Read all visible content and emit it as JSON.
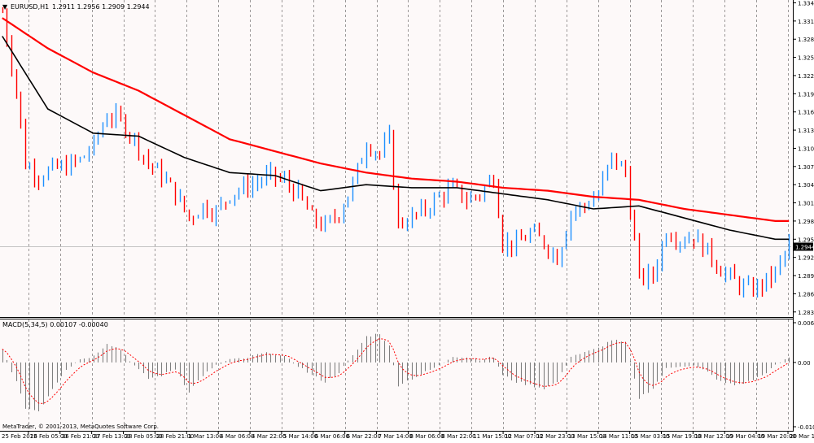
{
  "symbol_header": {
    "symbol": "EURUSD,H1",
    "ohlc": "1.2911 1.2956 1.2909 1.2944"
  },
  "macd_header": "MACD(5,34,5) 0.00107 -0.00040",
  "watermark": "MetaTrader, © 2001-2013, MetaQuotes Software Corp.",
  "price_axis": {
    "ticks": [
      "1.3345",
      "1.3315",
      "1.3285",
      "1.3255",
      "1.3225",
      "1.3195",
      "1.3165",
      "1.3135",
      "1.3105",
      "1.3075",
      "1.3045",
      "1.3015",
      "1.2985",
      "1.2955",
      "1.2925",
      "1.2895",
      "1.2865",
      "1.2835"
    ],
    "current_price": "1.2944"
  },
  "macd_axis": {
    "ticks": [
      "0.00664",
      "0.00",
      "-0.01043"
    ]
  },
  "time_axis": {
    "labels": [
      "25 Feb 2013",
      "26 Feb 05:00",
      "26 Feb 21:00",
      "27 Feb 13:00",
      "28 Feb 05:00",
      "28 Feb 21:00",
      "1 Mar 13:00",
      "4 Mar 06:00",
      "4 Mar 22:00",
      "5 Mar 14:00",
      "6 Mar 06:00",
      "6 Mar 22:00",
      "7 Mar 14:00",
      "8 Mar 06:00",
      "8 Mar 22:00",
      "11 Mar 15:00",
      "12 Mar 07:00",
      "12 Mar 23:00",
      "13 Mar 15:00",
      "14 Mar 11:00",
      "15 Mar 03:00",
      "15 Mar 19:00",
      "18 Mar 12:00",
      "19 Mar 04:00",
      "19 Mar 20:00",
      "20 Mar 12:00"
    ]
  },
  "colors": {
    "background": "#ffffff",
    "plot_bg": "#fdf9f9",
    "bull": "#1e90ff",
    "bear": "#ff0000",
    "ma_slow": "#ff0000",
    "ma_fast": "#000000",
    "macd_hist": "#808080",
    "macd_signal": "#ff0000",
    "grid": "#000000"
  },
  "chart_data": {
    "type": "line",
    "price_ylim": [
      1.2828,
      1.3347
    ],
    "macd_ylim": [
      -0.01043,
      0.00664
    ],
    "price_path": [
      [
        0,
        1.333
      ],
      [
        3,
        1.32
      ],
      [
        5,
        1.308
      ],
      [
        8,
        1.306
      ],
      [
        11,
        1.307
      ],
      [
        14,
        1.3075
      ],
      [
        17,
        1.3085
      ],
      [
        20,
        1.311
      ],
      [
        23,
        1.316
      ],
      [
        26,
        1.315
      ],
      [
        29,
        1.312
      ],
      [
        32,
        1.308
      ],
      [
        35,
        1.306
      ],
      [
        38,
        1.303
      ],
      [
        41,
        1.299
      ],
      [
        44,
        1.301
      ],
      [
        47,
        1.3
      ],
      [
        50,
        1.303
      ],
      [
        53,
        1.304
      ],
      [
        56,
        1.305
      ],
      [
        59,
        1.306
      ],
      [
        62,
        1.305
      ],
      [
        65,
        1.303
      ],
      [
        68,
        1.299
      ],
      [
        71,
        1.2975
      ],
      [
        74,
        1.3
      ],
      [
        77,
        1.3045
      ],
      [
        80,
        1.3115
      ],
      [
        83,
        1.3095
      ],
      [
        85,
        1.312
      ],
      [
        87,
        1.298
      ],
      [
        90,
        1.299
      ],
      [
        93,
        1.3005
      ],
      [
        96,
        1.3025
      ],
      [
        99,
        1.304
      ],
      [
        102,
        1.302
      ],
      [
        105,
        1.303
      ],
      [
        108,
        1.306
      ],
      [
        110,
        1.295
      ],
      [
        113,
        1.2945
      ],
      [
        116,
        1.2965
      ],
      [
        119,
        1.295
      ],
      [
        122,
        1.2925
      ],
      [
        125,
        1.3
      ],
      [
        128,
        1.301
      ],
      [
        131,
        1.303
      ],
      [
        134,
        1.309
      ],
      [
        137,
        1.3065
      ],
      [
        140,
        1.289
      ],
      [
        143,
        1.2895
      ],
      [
        146,
        1.297
      ],
      [
        149,
        1.2955
      ],
      [
        152,
        1.296
      ],
      [
        155,
        1.2935
      ],
      [
        158,
        1.2905
      ],
      [
        161,
        1.2885
      ],
      [
        164,
        1.287
      ],
      [
        167,
        1.288
      ],
      [
        170,
        1.29
      ],
      [
        173,
        1.2945
      ]
    ],
    "macd_hist_path": [
      [
        0,
        0.002
      ],
      [
        3,
        -0.003
      ],
      [
        5,
        -0.007
      ],
      [
        8,
        -0.0075
      ],
      [
        11,
        -0.004
      ],
      [
        14,
        -0.001
      ],
      [
        17,
        0.0005
      ],
      [
        20,
        0.001
      ],
      [
        23,
        0.003
      ],
      [
        26,
        0.002
      ],
      [
        29,
        -0.0005
      ],
      [
        32,
        -0.0025
      ],
      [
        35,
        -0.002
      ],
      [
        38,
        -0.001
      ],
      [
        41,
        -0.0045
      ],
      [
        44,
        -0.002
      ],
      [
        47,
        -0.0005
      ],
      [
        50,
        0.0005
      ],
      [
        53,
        0.0005
      ],
      [
        56,
        0.0012
      ],
      [
        59,
        0.0015
      ],
      [
        62,
        0.0008
      ],
      [
        65,
        -0.0005
      ],
      [
        68,
        -0.002
      ],
      [
        71,
        -0.003
      ],
      [
        74,
        -0.0015
      ],
      [
        77,
        0.001
      ],
      [
        80,
        0.004
      ],
      [
        83,
        0.0045
      ],
      [
        85,
        0.0025
      ],
      [
        87,
        -0.0035
      ],
      [
        90,
        -0.0025
      ],
      [
        93,
        -0.0015
      ],
      [
        96,
        -0.0005
      ],
      [
        99,
        0.001
      ],
      [
        102,
        0.0008
      ],
      [
        105,
        0.0005
      ],
      [
        108,
        0.0008
      ],
      [
        110,
        -0.002
      ],
      [
        113,
        -0.003
      ],
      [
        116,
        -0.0035
      ],
      [
        119,
        -0.004
      ],
      [
        122,
        -0.003
      ],
      [
        125,
        0.001
      ],
      [
        128,
        0.0015
      ],
      [
        131,
        0.0022
      ],
      [
        134,
        0.0035
      ],
      [
        137,
        0.003
      ],
      [
        140,
        -0.0055
      ],
      [
        143,
        -0.004
      ],
      [
        146,
        -0.001
      ],
      [
        149,
        -0.0005
      ],
      [
        152,
        -0.0005
      ],
      [
        155,
        -0.0015
      ],
      [
        158,
        -0.003
      ],
      [
        161,
        -0.0035
      ],
      [
        164,
        -0.003
      ],
      [
        167,
        -0.002
      ],
      [
        170,
        -0.0005
      ],
      [
        173,
        0.0008
      ]
    ],
    "ma_slow": [
      [
        0,
        1.332
      ],
      [
        10,
        1.327
      ],
      [
        20,
        1.323
      ],
      [
        30,
        1.32
      ],
      [
        40,
        1.316
      ],
      [
        50,
        1.312
      ],
      [
        60,
        1.31
      ],
      [
        70,
        1.308
      ],
      [
        80,
        1.3065
      ],
      [
        90,
        1.3055
      ],
      [
        100,
        1.305
      ],
      [
        110,
        1.304
      ],
      [
        120,
        1.3035
      ],
      [
        130,
        1.3025
      ],
      [
        140,
        1.302
      ],
      [
        150,
        1.3005
      ],
      [
        160,
        1.2995
      ],
      [
        170,
        1.2985
      ]
    ],
    "ma_fast": [
      [
        0,
        1.329
      ],
      [
        10,
        1.317
      ],
      [
        20,
        1.313
      ],
      [
        30,
        1.3125
      ],
      [
        40,
        1.309
      ],
      [
        50,
        1.3065
      ],
      [
        60,
        1.306
      ],
      [
        70,
        1.3035
      ],
      [
        80,
        1.3045
      ],
      [
        90,
        1.304
      ],
      [
        100,
        1.304
      ],
      [
        110,
        1.303
      ],
      [
        120,
        1.302
      ],
      [
        130,
        1.3005
      ],
      [
        140,
        1.301
      ],
      [
        150,
        1.299
      ],
      [
        160,
        1.297
      ],
      [
        170,
        1.2955
      ]
    ]
  }
}
